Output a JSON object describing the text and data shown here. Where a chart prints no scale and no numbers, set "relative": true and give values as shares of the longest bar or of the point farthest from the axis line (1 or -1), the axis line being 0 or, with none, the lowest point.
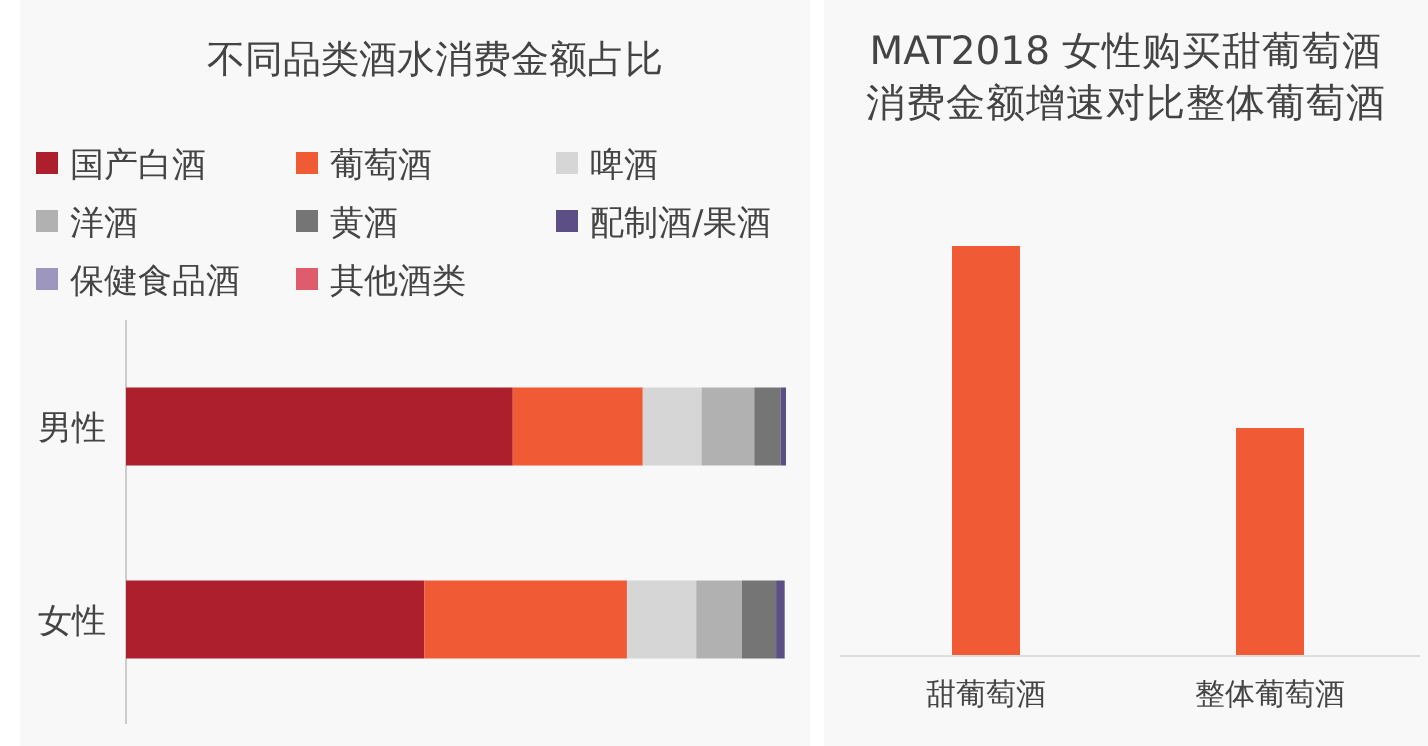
{
  "chart_data": [
    {
      "type": "bar",
      "title": "不同品类酒水消费金额占比",
      "orientation": "horizontal",
      "stacked": true,
      "relative": true,
      "legend": "top",
      "categories": [
        "男性",
        "女性"
      ],
      "series": [
        {
          "name": "国产白酒",
          "color": "#ae1f2e",
          "values": [
            0.586,
            0.452
          ]
        },
        {
          "name": "葡萄酒",
          "color": "#f05a35",
          "values": [
            0.197,
            0.307
          ]
        },
        {
          "name": "啤酒",
          "color": "#d6d6d6",
          "values": [
            0.089,
            0.105
          ]
        },
        {
          "name": "洋酒",
          "color": "#b1b1b1",
          "values": [
            0.08,
            0.069
          ]
        },
        {
          "name": "黄酒",
          "color": "#757575",
          "values": [
            0.04,
            0.052
          ]
        },
        {
          "name": "配制酒/果酒",
          "color": "#5b4f86",
          "values": [
            0.008,
            0.013
          ]
        },
        {
          "name": "保健食品酒",
          "color": "#9d97c0",
          "values": [
            0,
            0
          ]
        },
        {
          "name": "其他酒类",
          "color": "#de5c6c",
          "values": [
            0,
            0
          ]
        }
      ]
    },
    {
      "type": "bar",
      "title": "MAT2018 女性购买甜葡萄酒消费金额增速对比整体葡萄酒",
      "relative": true,
      "categories": [
        "甜葡萄酒",
        "整体葡萄酒"
      ],
      "color": "#f05a35",
      "values": [
        1,
        0.556
      ]
    }
  ]
}
